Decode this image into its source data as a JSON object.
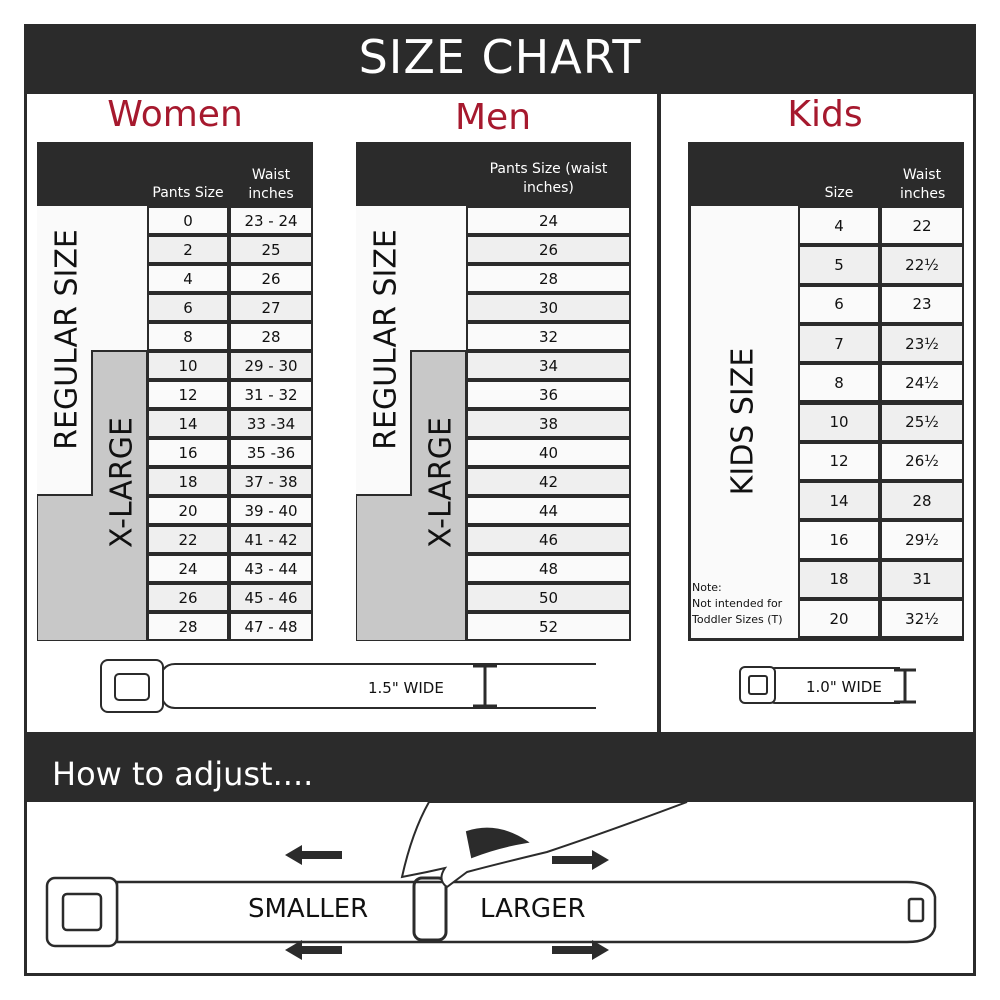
{
  "header": {
    "title": "SIZE CHART"
  },
  "women": {
    "title": "Women",
    "col_headers": [
      "Pants Size",
      "Waist inches"
    ],
    "regular_label": "REGULAR SIZE",
    "xlarge_label": "X-LARGE",
    "rows": [
      [
        "0",
        "23 - 24"
      ],
      [
        "2",
        "25"
      ],
      [
        "4",
        "26"
      ],
      [
        "6",
        "27"
      ],
      [
        "8",
        "28"
      ],
      [
        "10",
        "29 - 30"
      ],
      [
        "12",
        "31 - 32"
      ],
      [
        "14",
        "33 -34"
      ],
      [
        "16",
        "35 -36"
      ],
      [
        "18",
        "37 - 38"
      ],
      [
        "20",
        "39 - 40"
      ],
      [
        "22",
        "41 - 42"
      ],
      [
        "24",
        "43 - 44"
      ],
      [
        "26",
        "45 - 46"
      ],
      [
        "28",
        "47 - 48"
      ]
    ],
    "belt_width": "1.5\" WIDE"
  },
  "men": {
    "title": "Men",
    "col_headers": [
      "Pants Size (waist inches)"
    ],
    "regular_label": "REGULAR SIZE",
    "xlarge_label": "X-LARGE",
    "rows": [
      [
        "24"
      ],
      [
        "26"
      ],
      [
        "28"
      ],
      [
        "30"
      ],
      [
        "32"
      ],
      [
        "34"
      ],
      [
        "36"
      ],
      [
        "38"
      ],
      [
        "40"
      ],
      [
        "42"
      ],
      [
        "44"
      ],
      [
        "46"
      ],
      [
        "48"
      ],
      [
        "50"
      ],
      [
        "52"
      ]
    ]
  },
  "kids": {
    "title": "Kids",
    "col_headers": [
      "Size",
      "Waist inches"
    ],
    "label": "KIDS SIZE",
    "note_title": "Note:",
    "note_text": "Not intended for Toddler Sizes (T)",
    "rows": [
      [
        "4",
        "22"
      ],
      [
        "5",
        "22½"
      ],
      [
        "6",
        "23"
      ],
      [
        "7",
        "23½"
      ],
      [
        "8",
        "24½"
      ],
      [
        "10",
        "25½"
      ],
      [
        "12",
        "26½"
      ],
      [
        "14",
        "28"
      ],
      [
        "16",
        "29½"
      ],
      [
        "18",
        "31"
      ],
      [
        "20",
        "32½"
      ]
    ],
    "belt_width": "1.0\" WIDE"
  },
  "adjust": {
    "title": "How to adjust....",
    "smaller": "SMALLER",
    "larger": "LARGER"
  },
  "colors": {
    "dark": "#2b2b2b",
    "accent": "#a6192e",
    "xlarge_fill": "#c8c8c8"
  }
}
